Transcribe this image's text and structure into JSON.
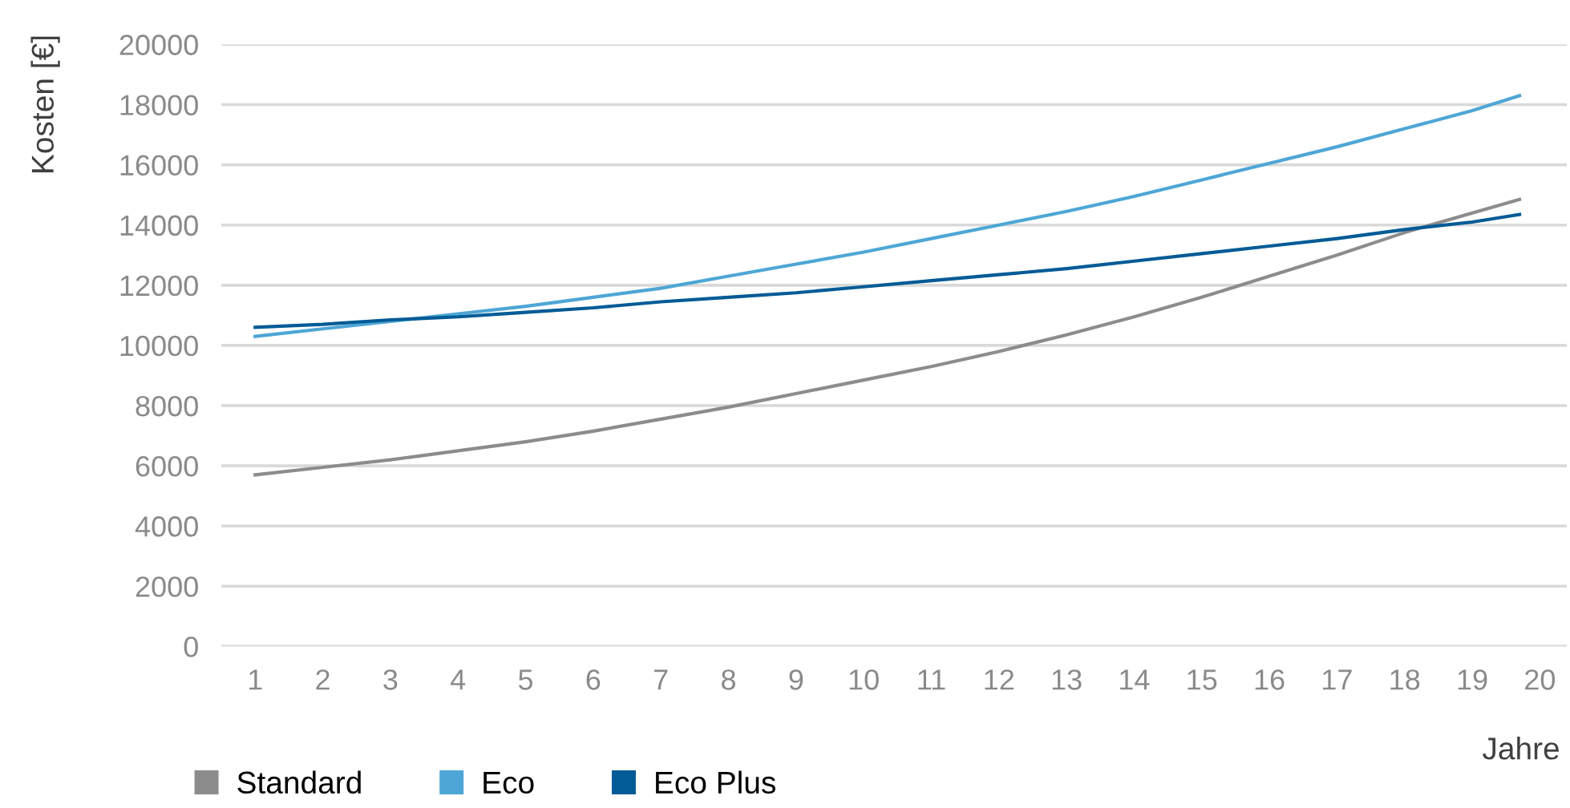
{
  "chart_data": {
    "type": "line",
    "xlabel": "Jahre",
    "ylabel": "Kosten [€]",
    "x": [
      1,
      2,
      3,
      4,
      5,
      6,
      7,
      8,
      9,
      10,
      11,
      12,
      13,
      14,
      15,
      16,
      17,
      18,
      19,
      19.7
    ],
    "series": [
      {
        "name": "Standard",
        "color": "#8c8c8c",
        "values": [
          5700,
          5950,
          6200,
          6500,
          6800,
          7150,
          7550,
          7950,
          8400,
          8850,
          9300,
          9800,
          10350,
          10950,
          11600,
          12300,
          13000,
          13750,
          14400,
          14850
        ]
      },
      {
        "name": "Eco",
        "color": "#4ea6d6",
        "values": [
          10300,
          10550,
          10800,
          11050,
          11300,
          11600,
          11900,
          12300,
          12700,
          13100,
          13550,
          14000,
          14450,
          14950,
          15500,
          16050,
          16600,
          17200,
          17800,
          18300
        ]
      },
      {
        "name": "Eco Plus",
        "color": "#005b96",
        "values": [
          10600,
          10700,
          10850,
          10950,
          11100,
          11250,
          11450,
          11600,
          11750,
          11950,
          12150,
          12350,
          12550,
          12800,
          13050,
          13300,
          13550,
          13850,
          14100,
          14350
        ]
      }
    ],
    "xlim": [
      0.5,
      20.4
    ],
    "xticks": [
      1,
      2,
      3,
      4,
      5,
      6,
      7,
      8,
      9,
      10,
      11,
      12,
      13,
      14,
      15,
      16,
      17,
      18,
      19,
      20
    ],
    "ylim": [
      0,
      20000
    ],
    "yticks": [
      0,
      2000,
      4000,
      6000,
      8000,
      10000,
      12000,
      14000,
      16000,
      18000,
      20000
    ],
    "grid": "y",
    "legend": "bottom left",
    "marker": "none",
    "line_style": "solid"
  }
}
